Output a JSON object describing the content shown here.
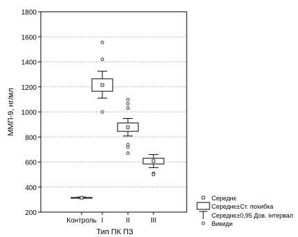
{
  "chart_data": {
    "type": "box",
    "ylabel": "ММП-9, нг/мл",
    "xlabel": "Тип ПК ПЗ",
    "ylim": [
      200,
      1800
    ],
    "yticks": [
      200,
      400,
      600,
      800,
      1000,
      1200,
      1400,
      1600,
      1800
    ],
    "grid": "horizontal-dashed",
    "categories": [
      "Контроль",
      "I",
      "II",
      "III"
    ],
    "boxes": [
      {
        "category": "Контроль",
        "mean": 315,
        "se": [
          312,
          318
        ],
        "ci": [
          310,
          320
        ],
        "outliers": []
      },
      {
        "category": "I",
        "mean": 1215,
        "se": [
          1165,
          1265
        ],
        "ci": [
          1110,
          1325
        ],
        "outliers": [
          1555,
          1420,
          1000
        ]
      },
      {
        "category": "II",
        "mean": 878,
        "se": [
          845,
          912
        ],
        "ci": [
          808,
          948
        ],
        "outliers": [
          1098,
          1065,
          1030,
          738,
          718,
          670
        ]
      },
      {
        "category": "III",
        "mean": 608,
        "se": [
          585,
          630
        ],
        "ci": [
          555,
          660
        ],
        "outliers": [
          510,
          500
        ]
      }
    ],
    "legend": {
      "position": "bottom-right",
      "items": [
        {
          "symbol": "square",
          "label": "Середнє"
        },
        {
          "symbol": "box",
          "label": "Середнє±Ст. похибка"
        },
        {
          "symbol": "whisker",
          "label": "Середнє±0,95 Дов. інтервал"
        },
        {
          "symbol": "circle",
          "label": "Викиди"
        }
      ]
    }
  }
}
